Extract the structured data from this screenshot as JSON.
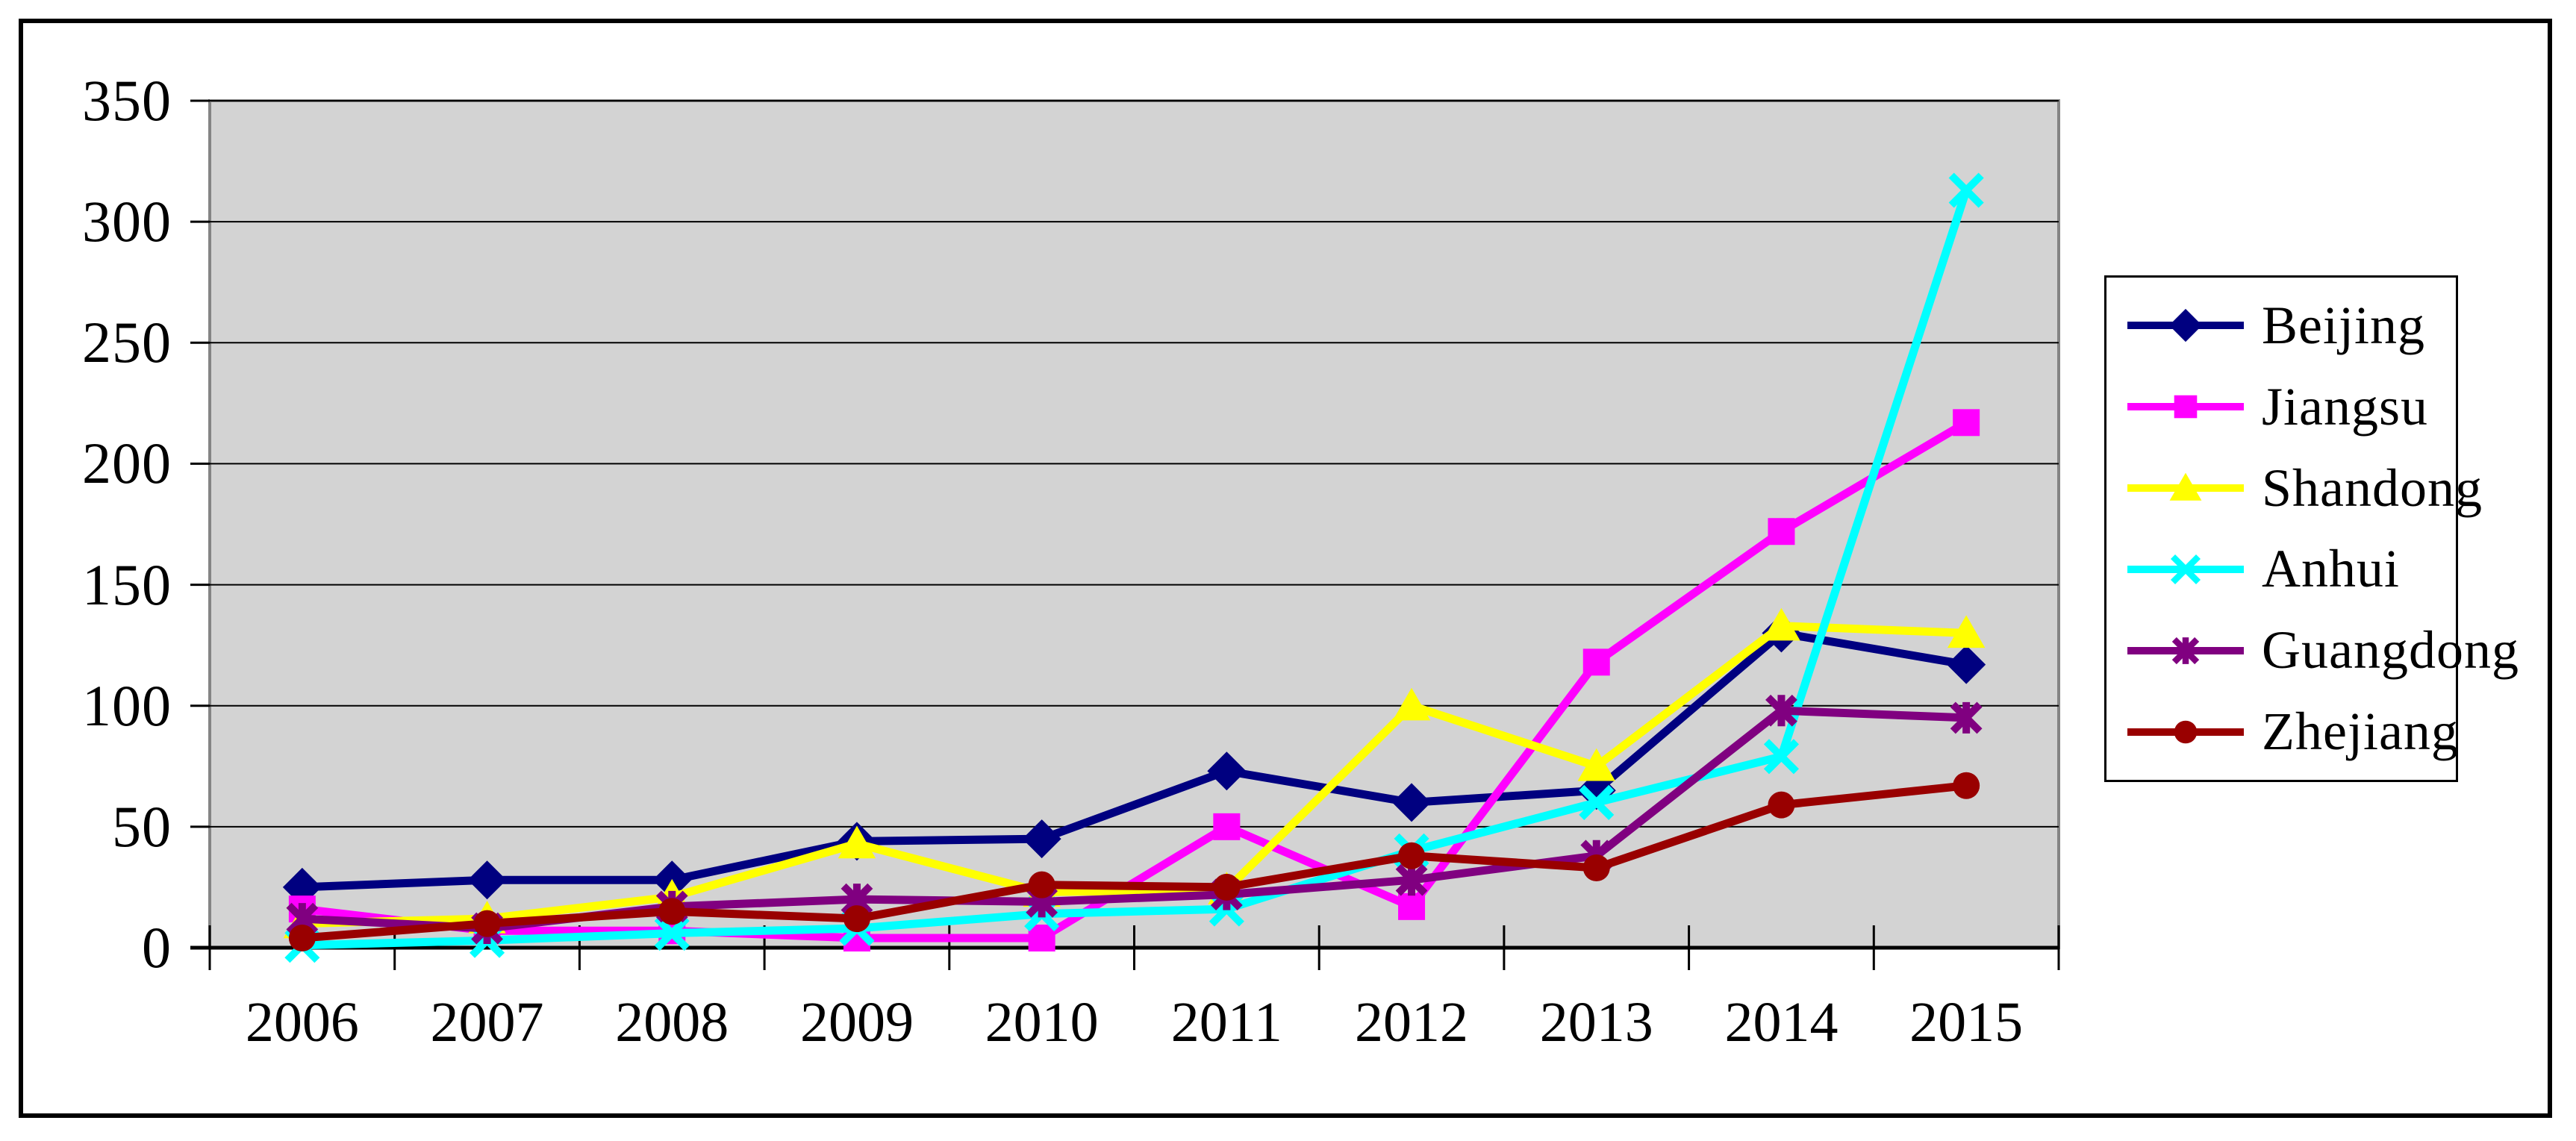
{
  "chart_data": {
    "type": "line",
    "title": "",
    "categories": [
      "2006",
      "2007",
      "2008",
      "2009",
      "2010",
      "2011",
      "2012",
      "2013",
      "2014",
      "2015"
    ],
    "series": [
      {
        "name": "Beijing",
        "color": "#000080",
        "marker": "diamond",
        "values": [
          25,
          28,
          28,
          44,
          45,
          73,
          60,
          65,
          130,
          117
        ]
      },
      {
        "name": "Jiangsu",
        "color": "#FF00FF",
        "marker": "square",
        "values": [
          16,
          7,
          7,
          4,
          4,
          50,
          17,
          118,
          172,
          217
        ]
      },
      {
        "name": "Shandong",
        "color": "#FFFF00",
        "marker": "triangle",
        "values": [
          10,
          12,
          21,
          43,
          23,
          24,
          100,
          75,
          133,
          130
        ]
      },
      {
        "name": "Anhui",
        "color": "#00FFFF",
        "marker": "x",
        "values": [
          1,
          3,
          6,
          8,
          14,
          16,
          40,
          60,
          79,
          313
        ]
      },
      {
        "name": "Guangdong",
        "color": "#800080",
        "marker": "asterisk",
        "values": [
          12,
          8,
          17,
          20,
          19,
          22,
          28,
          38,
          98,
          95
        ]
      },
      {
        "name": "Zhejiang",
        "color": "#990000",
        "marker": "circle",
        "values": [
          4,
          10,
          15,
          12,
          26,
          25,
          38,
          33,
          59,
          67
        ]
      }
    ],
    "y_axis": {
      "min": 0,
      "max": 350,
      "step": 50,
      "tick_labels": [
        "0",
        "50",
        "100",
        "150",
        "200",
        "250",
        "300",
        "350"
      ]
    },
    "x_axis": {
      "labels": [
        "2006",
        "2007",
        "2008",
        "2009",
        "2010",
        "2011",
        "2012",
        "2013",
        "2014",
        "2015"
      ]
    },
    "legend_position": "right",
    "grid": true,
    "plot_bg_color": "#D3D3D3",
    "gridline_color": "#000000",
    "axis_color": "#000000"
  }
}
